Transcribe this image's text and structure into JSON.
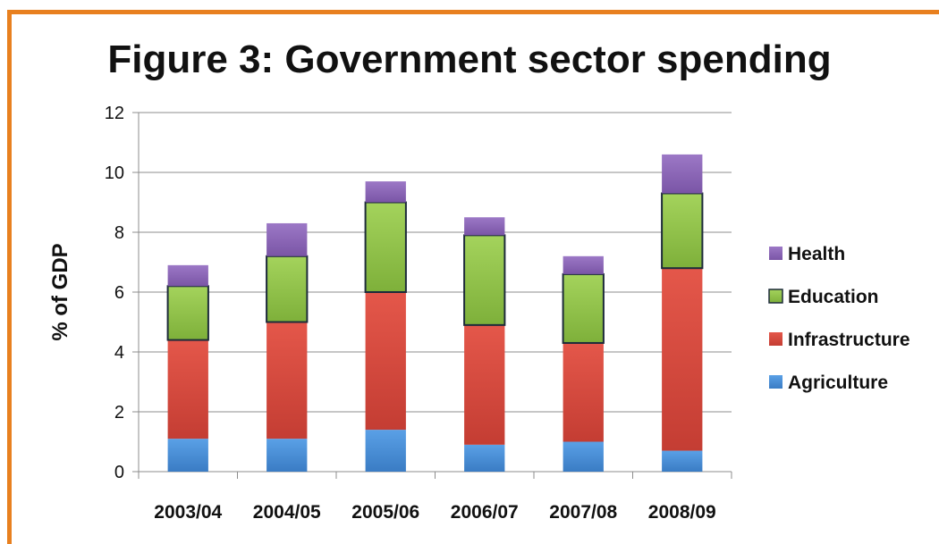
{
  "chart_data": {
    "type": "bar",
    "stacked": true,
    "title": "Figure 3: Government sector spending",
    "xlabel": "",
    "ylabel": "% of GDP",
    "ylim": [
      0,
      12
    ],
    "yticks": [
      0,
      2,
      4,
      6,
      8,
      10,
      12
    ],
    "grid": true,
    "legend_position": "right",
    "categories": [
      "2003/04",
      "2004/05",
      "2005/06",
      "2006/07",
      "2007/08",
      "2008/09"
    ],
    "series": [
      {
        "name": "Agriculture",
        "color": "#4a8fd6",
        "values": [
          1.1,
          1.1,
          1.4,
          0.9,
          1.0,
          0.7
        ]
      },
      {
        "name": "Infrastructure",
        "color": "#d94b3f",
        "values": [
          3.3,
          3.9,
          4.6,
          4.0,
          3.3,
          6.1
        ]
      },
      {
        "name": "Education",
        "color": "#8fc447",
        "values": [
          1.8,
          2.2,
          3.0,
          3.0,
          2.3,
          2.5
        ]
      },
      {
        "name": "Health",
        "color": "#8a64b5",
        "values": [
          0.7,
          1.1,
          0.7,
          0.6,
          0.6,
          1.3
        ]
      }
    ]
  }
}
